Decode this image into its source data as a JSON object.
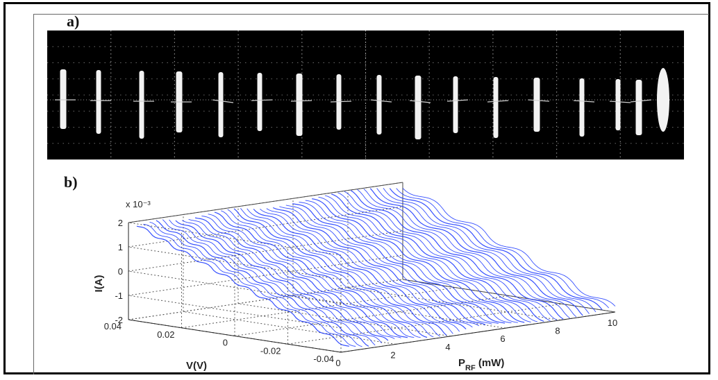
{
  "panels": {
    "a_label": "a)",
    "b_label": "b)"
  },
  "chart_data": [
    {
      "panel": "a)",
      "type": "oscilloscope_trace",
      "background": "#000000",
      "trace_color": "#f2f2f2",
      "grid": true
    },
    {
      "panel": "b)",
      "type": "line",
      "projection": "3d",
      "series_color": "#1f3cff",
      "grid": true,
      "z_multiplier": "x 10⁻³",
      "zlabel": "I(A)",
      "ylabel": "V(V)",
      "xlabel": {
        "main": "P",
        "sub": "RF",
        "rest": " (mW)"
      },
      "xlim": [
        0,
        10
      ],
      "ylim": [
        -0.04,
        0.04
      ],
      "zlim": [
        -2,
        2
      ],
      "x_ticks": [
        "0",
        "2",
        "4",
        "6",
        "8",
        "10"
      ],
      "y_ticks": [
        "0.04",
        "0.02",
        "0",
        "-0.02",
        "-0.04"
      ],
      "z_ticks": [
        "2",
        "1",
        "0",
        "-1",
        "-2"
      ]
    }
  ]
}
